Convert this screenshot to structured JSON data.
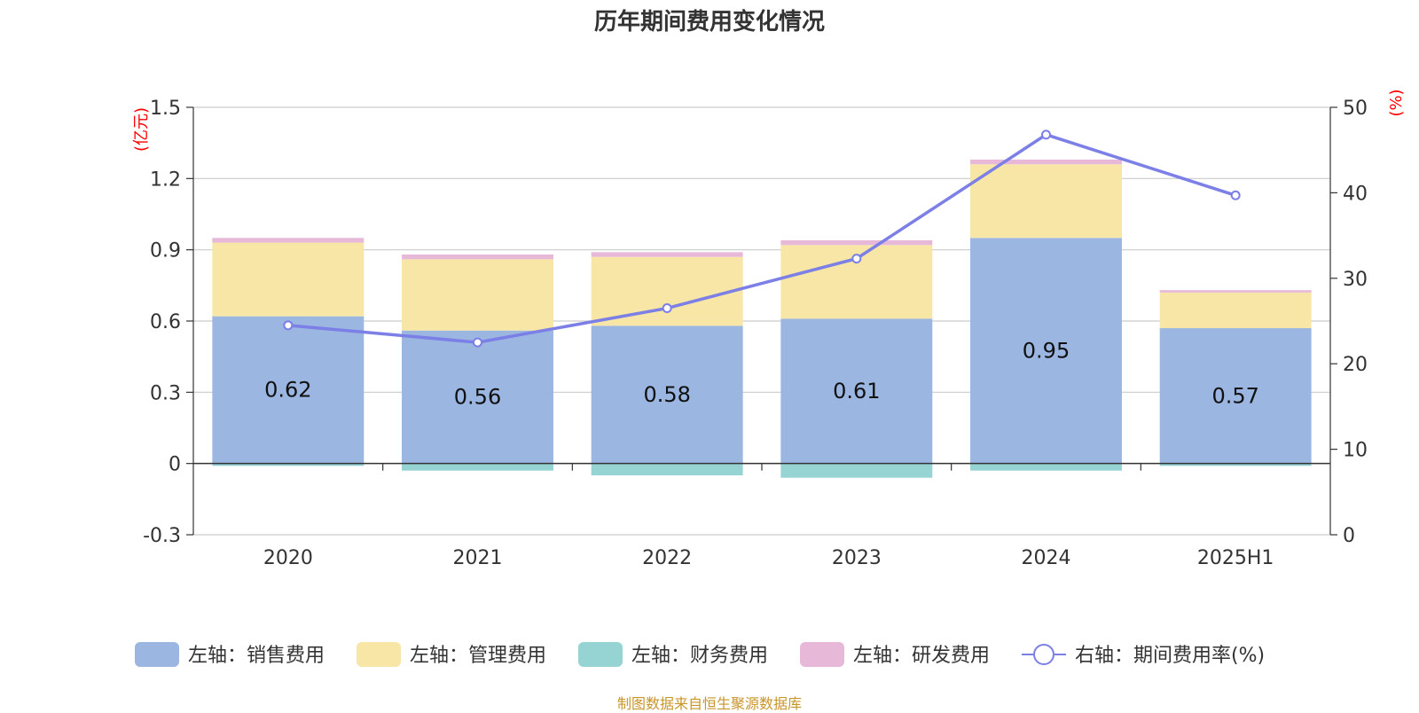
{
  "chart_data": {
    "type": "bar",
    "title": "历年期间费用变化情况",
    "categories": [
      "2020",
      "2021",
      "2022",
      "2023",
      "2024",
      "2025H1"
    ],
    "left_axis": {
      "unit": "(亿元)",
      "ticks": [
        "1.5",
        "1.2",
        "0.9",
        "0.6",
        "0.3",
        "0",
        "-0.3"
      ],
      "ylim": [
        -0.3,
        1.5
      ]
    },
    "right_axis": {
      "unit": "(%)",
      "ticks": [
        "50",
        "40",
        "30",
        "20",
        "10",
        "0"
      ],
      "ylim": [
        0,
        50
      ]
    },
    "series": [
      {
        "name": "左轴：销售费用",
        "type": "bar",
        "axis": "left",
        "color": "#9ab6e1",
        "stack": true,
        "values": [
          0.62,
          0.56,
          0.58,
          0.61,
          0.95,
          0.57
        ],
        "labels": [
          "0.62",
          "0.56",
          "0.58",
          "0.61",
          "0.95",
          "0.57"
        ]
      },
      {
        "name": "左轴：管理费用",
        "type": "bar",
        "axis": "left",
        "color": "#f7e6a6",
        "stack": true,
        "values": [
          0.31,
          0.3,
          0.29,
          0.31,
          0.31,
          0.15
        ]
      },
      {
        "name": "左轴：财务费用",
        "type": "bar",
        "axis": "left",
        "color": "#96d4d4",
        "stack": true,
        "values": [
          -0.01,
          -0.03,
          -0.05,
          -0.06,
          -0.03,
          -0.01
        ]
      },
      {
        "name": "左轴：研发费用",
        "type": "bar",
        "axis": "left",
        "color": "#e7b8d8",
        "stack": true,
        "values": [
          0.02,
          0.02,
          0.02,
          0.02,
          0.02,
          0.01
        ]
      },
      {
        "name": "右轴：期间费用率(%)",
        "type": "line",
        "axis": "right",
        "color": "#7b7fe6",
        "values": [
          24.5,
          22.5,
          26.5,
          32.3,
          46.8,
          39.7
        ]
      }
    ],
    "grid": true,
    "legend_position": "bottom"
  },
  "colors": {
    "axis_unit": "#ff0000",
    "source": "#c8952a",
    "grid": "#cccccc",
    "axis_line": "#333333"
  },
  "source": "制图数据来自恒生聚源数据库"
}
